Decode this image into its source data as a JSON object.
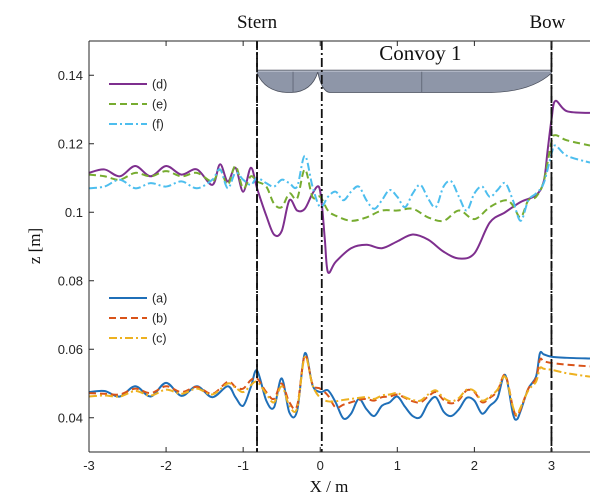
{
  "chart_data": {
    "type": "line",
    "xlabel": "X / m",
    "ylabel": "z [m]",
    "xlim": [
      -3,
      3.5
    ],
    "ylim": [
      0.03,
      0.15
    ],
    "xticks": [
      -3,
      -2,
      -1,
      0,
      1,
      2,
      3
    ],
    "yticks": [
      0.04,
      0.06,
      0.08,
      0.1,
      0.12,
      0.14
    ],
    "ytick_labels": [
      "0.04",
      "0.06",
      "0.08",
      "0.1",
      "0.12",
      "0.14"
    ],
    "grid": false,
    "annotations": [
      {
        "text": "Stern",
        "x": -0.82
      },
      {
        "text": "Bow",
        "x": 3.0
      },
      {
        "text": "Convoy 1",
        "x": 1.3
      }
    ],
    "reference_lines": [
      {
        "style": "dash-dot",
        "x": -0.82
      },
      {
        "style": "dashed",
        "x": -0.82
      },
      {
        "style": "dash-dot",
        "x": 0.02
      },
      {
        "style": "dash-dot",
        "x": 3.0
      },
      {
        "style": "dashed",
        "x": 3.0
      }
    ],
    "hull": {
      "x_start": -0.82,
      "x_mid": 0.02,
      "x_end": 3.0,
      "z_top": 0.1415,
      "z_bottom": 0.137
    },
    "legends": [
      {
        "placement": "upper-left",
        "entries": [
          "(d)",
          "(e)",
          "(f)"
        ]
      },
      {
        "placement": "lower-left",
        "entries": [
          "(a)",
          "(b)",
          "(c)"
        ]
      }
    ],
    "series": [
      {
        "name": "(a)",
        "color": "#1f6fb8",
        "dash": "solid",
        "width": 2,
        "x": [
          -3,
          -2.8,
          -2.6,
          -2.4,
          -2.2,
          -2.0,
          -1.8,
          -1.6,
          -1.4,
          -1.2,
          -1.1,
          -1.0,
          -0.9,
          -0.82,
          -0.7,
          -0.6,
          -0.5,
          -0.4,
          -0.3,
          -0.2,
          -0.1,
          0.0,
          0.1,
          0.2,
          0.3,
          0.4,
          0.5,
          0.6,
          0.7,
          0.8,
          0.9,
          1.0,
          1.1,
          1.2,
          1.3,
          1.4,
          1.5,
          1.6,
          1.7,
          1.8,
          1.9,
          2.0,
          2.1,
          2.2,
          2.3,
          2.4,
          2.5,
          2.55,
          2.6,
          2.7,
          2.8,
          2.85,
          2.9,
          3.0,
          3.2,
          3.5
        ],
        "y": [
          0.0475,
          0.0478,
          0.0462,
          0.0492,
          0.0462,
          0.0502,
          0.0464,
          0.0492,
          0.046,
          0.0492,
          0.046,
          0.0435,
          0.049,
          0.0538,
          0.045,
          0.043,
          0.0515,
          0.0415,
          0.042,
          0.0588,
          0.0495,
          0.0475,
          0.048,
          0.0445,
          0.0398,
          0.0412,
          0.0455,
          0.0425,
          0.0405,
          0.0435,
          0.0445,
          0.0462,
          0.0432,
          0.0405,
          0.0402,
          0.0442,
          0.046,
          0.0418,
          0.0405,
          0.0425,
          0.0458,
          0.045,
          0.0412,
          0.0435,
          0.0458,
          0.0525,
          0.0412,
          0.0395,
          0.042,
          0.0485,
          0.052,
          0.0588,
          0.0585,
          0.0578,
          0.0575,
          0.0573
        ]
      },
      {
        "name": "(b)",
        "color": "#d95319",
        "dash": "dashed",
        "width": 2,
        "x": [
          -3,
          -2.8,
          -2.6,
          -2.4,
          -2.2,
          -2.0,
          -1.8,
          -1.6,
          -1.4,
          -1.2,
          -1.1,
          -1.0,
          -0.9,
          -0.82,
          -0.7,
          -0.6,
          -0.5,
          -0.4,
          -0.3,
          -0.2,
          -0.1,
          0.0,
          0.1,
          0.2,
          0.3,
          0.4,
          0.5,
          0.6,
          0.7,
          0.8,
          0.9,
          1.0,
          1.1,
          1.2,
          1.3,
          1.4,
          1.5,
          1.6,
          1.7,
          1.8,
          1.9,
          2.0,
          2.1,
          2.2,
          2.3,
          2.4,
          2.5,
          2.55,
          2.6,
          2.7,
          2.8,
          2.85,
          2.9,
          3.0,
          3.2,
          3.5
        ],
        "y": [
          0.0472,
          0.047,
          0.0468,
          0.0485,
          0.0472,
          0.0492,
          0.0475,
          0.049,
          0.047,
          0.0505,
          0.049,
          0.0485,
          0.051,
          0.0515,
          0.0475,
          0.0455,
          0.05,
          0.0445,
          0.0435,
          0.0582,
          0.0498,
          0.0485,
          0.0465,
          0.043,
          0.0438,
          0.0445,
          0.0452,
          0.0455,
          0.045,
          0.046,
          0.0462,
          0.0468,
          0.0458,
          0.0448,
          0.0445,
          0.0462,
          0.0475,
          0.0452,
          0.0442,
          0.0452,
          0.048,
          0.0475,
          0.0445,
          0.0458,
          0.0478,
          0.0525,
          0.043,
          0.0405,
          0.0425,
          0.0485,
          0.0515,
          0.057,
          0.0565,
          0.056,
          0.0555,
          0.055
        ]
      },
      {
        "name": "(c)",
        "color": "#edb120",
        "dash": "dash-dot",
        "width": 2,
        "x": [
          -3,
          -2.8,
          -2.6,
          -2.4,
          -2.2,
          -2.0,
          -1.8,
          -1.6,
          -1.4,
          -1.2,
          -1.1,
          -1.0,
          -0.9,
          -0.82,
          -0.7,
          -0.6,
          -0.5,
          -0.4,
          -0.3,
          -0.2,
          -0.1,
          0.0,
          0.1,
          0.2,
          0.3,
          0.4,
          0.5,
          0.6,
          0.7,
          0.8,
          0.9,
          1.0,
          1.1,
          1.2,
          1.3,
          1.4,
          1.5,
          1.6,
          1.7,
          1.8,
          1.9,
          2.0,
          2.1,
          2.2,
          2.3,
          2.4,
          2.5,
          2.55,
          2.6,
          2.7,
          2.8,
          2.85,
          2.9,
          3.0,
          3.2,
          3.5
        ],
        "y": [
          0.0462,
          0.0465,
          0.0462,
          0.0478,
          0.0465,
          0.0482,
          0.047,
          0.0485,
          0.0468,
          0.05,
          0.0488,
          0.0475,
          0.0495,
          0.0505,
          0.047,
          0.0445,
          0.0492,
          0.0435,
          0.0428,
          0.0578,
          0.0495,
          0.0458,
          0.0448,
          0.0448,
          0.0452,
          0.0455,
          0.0458,
          0.046,
          0.0455,
          0.0465,
          0.0468,
          0.0472,
          0.046,
          0.0452,
          0.045,
          0.0468,
          0.048,
          0.0458,
          0.0448,
          0.0458,
          0.0482,
          0.0478,
          0.045,
          0.0462,
          0.0482,
          0.052,
          0.0432,
          0.041,
          0.043,
          0.048,
          0.0505,
          0.0545,
          0.0543,
          0.054,
          0.053,
          0.052
        ]
      },
      {
        "name": "(d)",
        "color": "#7e2f8e",
        "dash": "solid",
        "width": 2,
        "x": [
          -3,
          -2.8,
          -2.6,
          -2.4,
          -2.2,
          -2.0,
          -1.8,
          -1.6,
          -1.4,
          -1.3,
          -1.2,
          -1.1,
          -1.0,
          -0.9,
          -0.82,
          -0.7,
          -0.6,
          -0.5,
          -0.4,
          -0.3,
          -0.2,
          -0.1,
          -0.02,
          0.02,
          0.06,
          0.1,
          0.2,
          0.4,
          0.6,
          0.8,
          1.0,
          1.2,
          1.4,
          1.6,
          1.8,
          2.0,
          2.2,
          2.4,
          2.6,
          2.8,
          2.9,
          2.95,
          3.0,
          3.05,
          3.2,
          3.5
        ],
        "y": [
          0.1115,
          0.1125,
          0.1105,
          0.1135,
          0.1105,
          0.1135,
          0.111,
          0.1125,
          0.108,
          0.114,
          0.109,
          0.113,
          0.106,
          0.113,
          0.107,
          0.099,
          0.0935,
          0.0945,
          0.1035,
          0.1005,
          0.101,
          0.1055,
          0.1075,
          0.1025,
          0.092,
          0.0825,
          0.0855,
          0.0895,
          0.0905,
          0.0895,
          0.0915,
          0.0935,
          0.092,
          0.0885,
          0.0865,
          0.088,
          0.097,
          0.1,
          0.103,
          0.105,
          0.109,
          0.118,
          0.127,
          0.1325,
          0.1295,
          0.129
        ]
      },
      {
        "name": "(e)",
        "color": "#77ac30",
        "dash": "dashed",
        "width": 2,
        "x": [
          -3,
          -2.8,
          -2.6,
          -2.4,
          -2.2,
          -2.0,
          -1.8,
          -1.6,
          -1.4,
          -1.3,
          -1.2,
          -1.1,
          -1.0,
          -0.9,
          -0.82,
          -0.7,
          -0.6,
          -0.5,
          -0.4,
          -0.3,
          -0.2,
          -0.1,
          0.0,
          0.1,
          0.2,
          0.4,
          0.6,
          0.8,
          1.0,
          1.2,
          1.4,
          1.6,
          1.8,
          2.0,
          2.2,
          2.4,
          2.5,
          2.6,
          2.7,
          2.8,
          2.9,
          3.0,
          3.05,
          3.2,
          3.5
        ],
        "y": [
          0.111,
          0.1105,
          0.1095,
          0.1115,
          0.1105,
          0.112,
          0.1105,
          0.1115,
          0.109,
          0.1125,
          0.108,
          0.1135,
          0.107,
          0.1105,
          0.109,
          0.1075,
          0.1025,
          0.1015,
          0.1055,
          0.104,
          0.1125,
          0.1045,
          0.1045,
          0.1005,
          0.099,
          0.0975,
          0.0985,
          0.1005,
          0.1005,
          0.101,
          0.0985,
          0.0975,
          0.1005,
          0.098,
          0.1015,
          0.1035,
          0.102,
          0.0985,
          0.1035,
          0.1045,
          0.109,
          0.1205,
          0.1225,
          0.121,
          0.1195
        ]
      },
      {
        "name": "(f)",
        "color": "#4dbeee",
        "dash": "dash-dot",
        "width": 2,
        "x": [
          -3,
          -2.8,
          -2.6,
          -2.4,
          -2.2,
          -2.0,
          -1.8,
          -1.6,
          -1.4,
          -1.3,
          -1.2,
          -1.1,
          -1.0,
          -0.9,
          -0.82,
          -0.7,
          -0.6,
          -0.5,
          -0.4,
          -0.3,
          -0.2,
          -0.1,
          0.0,
          0.1,
          0.2,
          0.3,
          0.4,
          0.5,
          0.6,
          0.7,
          0.8,
          0.9,
          1.0,
          1.1,
          1.2,
          1.3,
          1.4,
          1.5,
          1.6,
          1.7,
          1.8,
          1.9,
          2.0,
          2.1,
          2.2,
          2.3,
          2.4,
          2.5,
          2.6,
          2.7,
          2.8,
          2.9,
          3.0,
          3.05,
          3.2,
          3.5
        ],
        "y": [
          0.107,
          0.1075,
          0.1095,
          0.107,
          0.1085,
          0.1075,
          0.109,
          0.107,
          0.1095,
          0.1125,
          0.107,
          0.1115,
          0.1095,
          0.108,
          0.11,
          0.1085,
          0.1075,
          0.1095,
          0.1085,
          0.1075,
          0.1165,
          0.1075,
          0.1015,
          0.1045,
          0.106,
          0.1035,
          0.106,
          0.1075,
          0.1035,
          0.101,
          0.1035,
          0.1065,
          0.1045,
          0.1015,
          0.1055,
          0.108,
          0.104,
          0.1015,
          0.1075,
          0.109,
          0.1045,
          0.1005,
          0.1055,
          0.1075,
          0.1045,
          0.1065,
          0.1085,
          0.1035,
          0.0975,
          0.1035,
          0.1055,
          0.1085,
          0.117,
          0.1195,
          0.1165,
          0.1145
        ]
      }
    ]
  }
}
